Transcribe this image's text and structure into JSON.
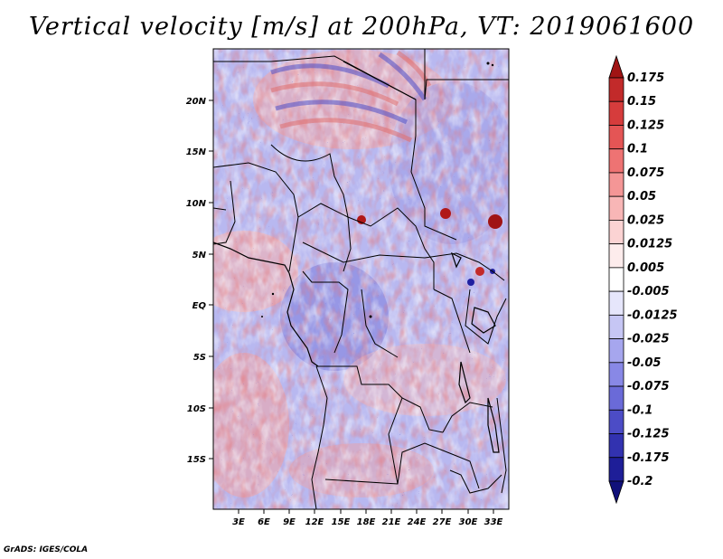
{
  "title": "Vertical velocity [m/s] at 200hPa, VT: 2019061600",
  "credit": "GrADS: IGES/COLA",
  "map": {
    "lat_ticks": [
      "20N",
      "15N",
      "10N",
      "5N",
      "EQ",
      "5S",
      "10S",
      "15S"
    ],
    "lon_ticks": [
      "3E",
      "6E",
      "9E",
      "12E",
      "15E",
      "18E",
      "21E",
      "24E",
      "27E",
      "30E",
      "33E"
    ]
  },
  "colorbar": {
    "levels": [
      "0.175",
      "0.15",
      "0.125",
      "0.1",
      "0.075",
      "0.05",
      "0.025",
      "0.0125",
      "0.005",
      "-0.005",
      "-0.0125",
      "-0.025",
      "-0.05",
      "-0.075",
      "-0.1",
      "-0.125",
      "-0.175",
      "-0.2"
    ],
    "colors": [
      "#a01414",
      "#c22a2a",
      "#d63c3c",
      "#e45555",
      "#ee7373",
      "#f49696",
      "#f8b6b6",
      "#fbd3d3",
      "#fdecec",
      "#ffffff",
      "#e6e6fb",
      "#c6c6f4",
      "#a6a6ee",
      "#8888e6",
      "#6a6ad8",
      "#4c4cc6",
      "#3232b0",
      "#1e1e98",
      "#10107a"
    ]
  },
  "regions": [
    {
      "name": "sahel-north-wave-red",
      "color": "#ee8080"
    },
    {
      "name": "equatorial-red",
      "color": "#f2a0a0"
    },
    {
      "name": "congo-blue",
      "color": "#6c6cd8"
    },
    {
      "name": "southern-red",
      "color": "#f09a9a"
    }
  ]
}
